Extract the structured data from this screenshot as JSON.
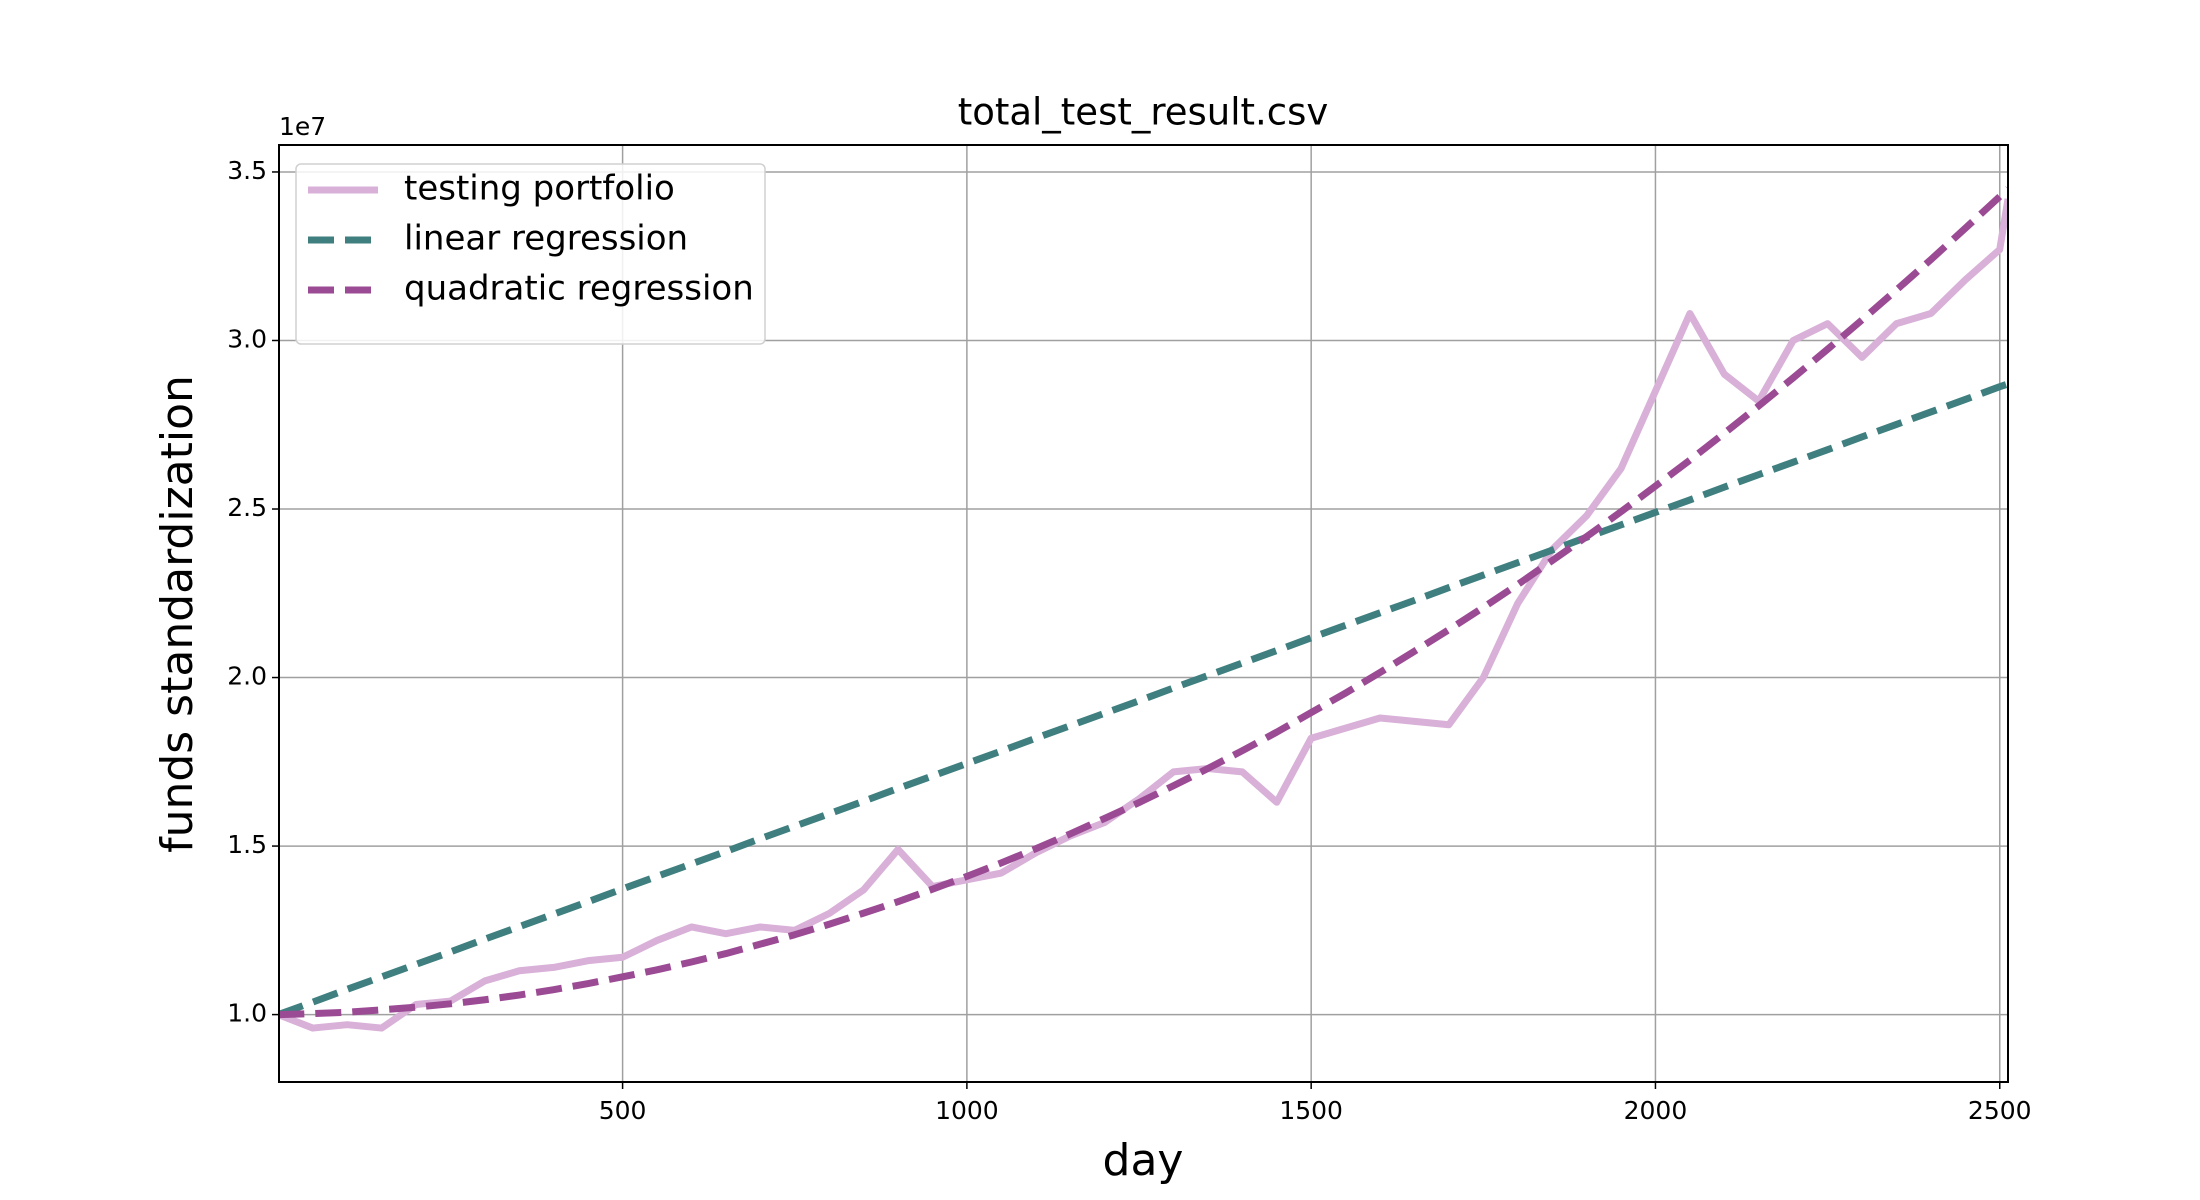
{
  "chart_data": {
    "type": "line",
    "title": "total_test_result.csv",
    "x_label": "day",
    "y_label": "funds standardization",
    "y_offset_label": "1e7",
    "x": [
      0,
      50,
      100,
      150,
      200,
      250,
      300,
      350,
      400,
      450,
      500,
      550,
      600,
      650,
      700,
      750,
      800,
      850,
      900,
      950,
      1000,
      1050,
      1100,
      1150,
      1200,
      1250,
      1300,
      1350,
      1400,
      1450,
      1500,
      1550,
      1600,
      1650,
      1700,
      1750,
      1800,
      1850,
      1900,
      1950,
      2000,
      2050,
      2100,
      2150,
      2200,
      2250,
      2300,
      2350,
      2400,
      2450,
      2500,
      2512
    ],
    "series": [
      {
        "name": "testing portfolio",
        "color": "#d8b0d8",
        "linestyle": "solid",
        "values": [
          1.0,
          0.96,
          0.97,
          0.96,
          1.03,
          1.04,
          1.1,
          1.13,
          1.14,
          1.16,
          1.17,
          1.22,
          1.26,
          1.24,
          1.26,
          1.25,
          1.3,
          1.37,
          1.49,
          1.38,
          1.4,
          1.42,
          1.48,
          1.53,
          1.57,
          1.64,
          1.72,
          1.73,
          1.72,
          1.63,
          1.82,
          1.85,
          1.88,
          1.87,
          1.86,
          2.0,
          2.22,
          2.38,
          2.48,
          2.62,
          2.85,
          3.08,
          2.9,
          2.82,
          3.0,
          3.05,
          2.95,
          3.05,
          3.08,
          3.18,
          3.27,
          3.42
        ]
      },
      {
        "name": "linear regression",
        "color": "#3f7f7f",
        "linestyle": "dashed",
        "values": [
          1.0,
          1.037,
          1.075,
          1.112,
          1.149,
          1.186,
          1.224,
          1.261,
          1.298,
          1.335,
          1.373,
          1.41,
          1.447,
          1.484,
          1.522,
          1.559,
          1.596,
          1.633,
          1.671,
          1.708,
          1.745,
          1.782,
          1.82,
          1.857,
          1.894,
          1.931,
          1.969,
          2.006,
          2.043,
          2.08,
          2.118,
          2.155,
          2.192,
          2.229,
          2.267,
          2.304,
          2.341,
          2.378,
          2.416,
          2.453,
          2.49,
          2.527,
          2.565,
          2.602,
          2.639,
          2.676,
          2.714,
          2.751,
          2.788,
          2.825,
          2.863,
          2.871
        ]
      },
      {
        "name": "quadratic regression",
        "color": "#9b4a94",
        "linestyle": "dashed",
        "values": [
          1.0,
          1.003,
          1.007,
          1.014,
          1.022,
          1.032,
          1.044,
          1.058,
          1.074,
          1.092,
          1.112,
          1.133,
          1.156,
          1.181,
          1.209,
          1.237,
          1.268,
          1.301,
          1.335,
          1.372,
          1.41,
          1.45,
          1.492,
          1.536,
          1.582,
          1.629,
          1.679,
          1.73,
          1.783,
          1.838,
          1.896,
          1.954,
          2.015,
          2.078,
          2.142,
          2.208,
          2.276,
          2.347,
          2.418,
          2.492,
          2.568,
          2.645,
          2.725,
          2.806,
          2.889,
          2.974,
          3.061,
          3.15,
          3.24,
          3.333,
          3.427,
          3.45
        ]
      }
    ],
    "xlim": [
      1,
      2512
    ],
    "ylim": [
      0.8,
      3.58
    ],
    "xticks": [
      500,
      1000,
      1500,
      2000,
      2500
    ],
    "yticks": [
      {
        "value": 1,
        "label": "1.0"
      },
      {
        "value": 1.5,
        "label": "1.5"
      },
      {
        "value": 2,
        "label": "2.0"
      },
      {
        "value": 2.5,
        "label": "2.5"
      },
      {
        "value": 3,
        "label": "3.0"
      },
      {
        "value": 3.5,
        "label": "3.5"
      }
    ],
    "grid": true,
    "legend": "upper left"
  }
}
